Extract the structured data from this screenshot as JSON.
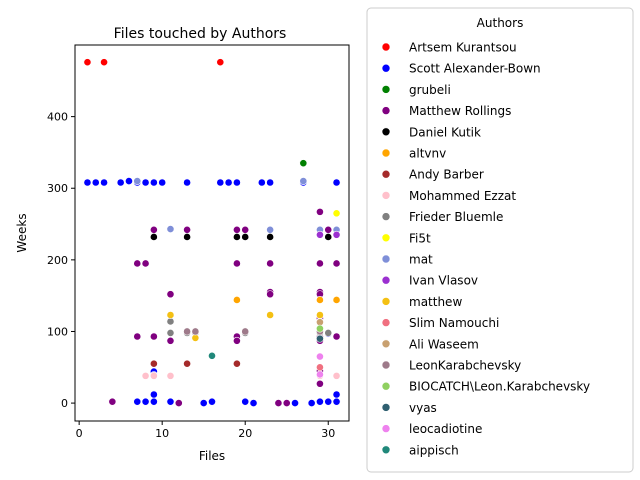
{
  "chart_data": {
    "type": "scatter",
    "title": "Files touched by Authors",
    "xlabel": "Files",
    "ylabel": "Weeks",
    "xlim": [
      -0.5,
      32.5
    ],
    "ylim": [
      -25,
      500
    ],
    "xticks": [
      0,
      10,
      20,
      30
    ],
    "yticks": [
      0,
      100,
      200,
      300,
      400
    ],
    "grid": false,
    "legend": {
      "title": "Authors",
      "placement": "outside-right"
    },
    "series": [
      {
        "name": "Artsem Kurantsou",
        "color": "#ff0000",
        "points": [
          [
            1,
            476
          ],
          [
            3,
            476
          ],
          [
            17,
            476
          ]
        ]
      },
      {
        "name": "Scott Alexander-Bown",
        "color": "#0000ff",
        "points": [
          [
            1,
            308
          ],
          [
            2,
            308
          ],
          [
            3,
            308
          ],
          [
            5,
            308
          ],
          [
            6,
            310
          ],
          [
            7,
            308
          ],
          [
            8,
            308
          ],
          [
            9,
            308
          ],
          [
            10,
            308
          ],
          [
            13,
            308
          ],
          [
            17,
            308
          ],
          [
            18,
            308
          ],
          [
            19,
            308
          ],
          [
            22,
            308
          ],
          [
            23,
            308
          ],
          [
            27,
            308
          ],
          [
            31,
            308
          ],
          [
            7,
            2
          ],
          [
            8,
            2
          ],
          [
            9,
            2
          ],
          [
            9,
            12
          ],
          [
            9,
            44
          ],
          [
            11,
            2
          ],
          [
            15,
            0
          ],
          [
            16,
            2
          ],
          [
            20,
            2
          ],
          [
            21,
            0
          ],
          [
            25,
            0
          ],
          [
            26,
            0
          ],
          [
            28,
            0
          ],
          [
            29,
            2
          ],
          [
            30,
            2
          ],
          [
            31,
            2
          ],
          [
            31,
            12
          ],
          [
            29,
            45
          ],
          [
            29,
            98
          ],
          [
            30,
            97
          ]
        ]
      },
      {
        "name": "grubeli",
        "color": "#008000",
        "points": [
          [
            27,
            335
          ]
        ]
      },
      {
        "name": "Matthew Rollings",
        "color": "#800080",
        "points": [
          [
            4,
            2
          ],
          [
            7,
            195
          ],
          [
            8,
            195
          ],
          [
            7,
            93
          ],
          [
            9,
            242
          ],
          [
            9,
            93
          ],
          [
            9,
            39
          ],
          [
            11,
            152
          ],
          [
            11,
            87
          ],
          [
            12,
            0
          ],
          [
            13,
            242
          ],
          [
            19,
            242
          ],
          [
            20,
            242
          ],
          [
            19,
            195
          ],
          [
            19,
            93
          ],
          [
            19,
            87
          ],
          [
            23,
            195
          ],
          [
            23,
            155
          ],
          [
            23,
            152
          ],
          [
            24,
            0
          ],
          [
            25,
            0
          ],
          [
            29,
            267
          ],
          [
            29,
            242
          ],
          [
            29,
            235
          ],
          [
            29,
            195
          ],
          [
            29,
            155
          ],
          [
            29,
            152
          ],
          [
            29,
            118
          ],
          [
            29,
            98
          ],
          [
            29,
            93
          ],
          [
            29,
            87
          ],
          [
            29,
            45
          ],
          [
            29,
            27
          ],
          [
            30,
            242
          ],
          [
            31,
            195
          ],
          [
            31,
            93
          ]
        ]
      },
      {
        "name": "Daniel Kutik",
        "color": "#000000",
        "points": [
          [
            9,
            232
          ],
          [
            13,
            232
          ],
          [
            19,
            232
          ],
          [
            20,
            232
          ],
          [
            23,
            232
          ],
          [
            30,
            232
          ]
        ]
      },
      {
        "name": "altvnv",
        "color": "#ffa500",
        "points": [
          [
            19,
            144
          ],
          [
            29,
            144
          ],
          [
            31,
            144
          ]
        ]
      },
      {
        "name": "Andy Barber",
        "color": "#a52a2a",
        "points": [
          [
            9,
            55
          ],
          [
            13,
            55
          ],
          [
            19,
            55
          ]
        ]
      },
      {
        "name": "Mohammed Ezzat",
        "color": "#ffc0cb",
        "points": [
          [
            8,
            38
          ],
          [
            9,
            38
          ],
          [
            11,
            38
          ],
          [
            29,
            38
          ],
          [
            31,
            38
          ]
        ]
      },
      {
        "name": "Frieder Bluemle",
        "color": "#808080",
        "points": [
          [
            11,
            98
          ],
          [
            11,
            114
          ],
          [
            13,
            98
          ],
          [
            14,
            98
          ],
          [
            20,
            98
          ],
          [
            29,
            114
          ],
          [
            29,
            98
          ],
          [
            30,
            98
          ]
        ]
      },
      {
        "name": "Fi5t",
        "color": "#ffff00",
        "points": [
          [
            31,
            265
          ]
        ]
      },
      {
        "name": "mat",
        "color": "#7f8fd8",
        "points": [
          [
            11,
            243
          ],
          [
            23,
            242
          ],
          [
            27,
            310
          ],
          [
            29,
            242
          ],
          [
            31,
            242
          ],
          [
            7,
            310
          ]
        ]
      },
      {
        "name": "Ivan Vlasov",
        "color": "#9b30d0",
        "points": [
          [
            29,
            235
          ],
          [
            31,
            235
          ]
        ]
      },
      {
        "name": "matthew",
        "color": "#f4c013",
        "points": [
          [
            11,
            123
          ],
          [
            14,
            91
          ],
          [
            23,
            123
          ],
          [
            29,
            123
          ]
        ]
      },
      {
        "name": "Slim Namouchi",
        "color": "#f07080",
        "points": [
          [
            29,
            50
          ]
        ]
      },
      {
        "name": "Ali Waseem",
        "color": "#c8a070",
        "points": [
          [
            29,
            113
          ]
        ]
      },
      {
        "name": "LeonKarabchevsky",
        "color": "#9e7a8a",
        "points": [
          [
            13,
            100
          ],
          [
            14,
            100
          ],
          [
            20,
            100
          ],
          [
            29,
            100
          ]
        ]
      },
      {
        "name": "BIOCATCH\\Leon.Karabchevsky",
        "color": "#8fd060",
        "points": [
          [
            29,
            104
          ]
        ]
      },
      {
        "name": "vyas",
        "color": "#2f5f70",
        "points": [
          [
            29,
            90
          ]
        ]
      },
      {
        "name": "leocadiotine",
        "color": "#ee82ee",
        "points": [
          [
            29,
            65
          ],
          [
            29,
            40
          ]
        ]
      },
      {
        "name": "aippisch",
        "color": "#20887a",
        "points": [
          [
            16,
            66
          ]
        ]
      }
    ]
  }
}
